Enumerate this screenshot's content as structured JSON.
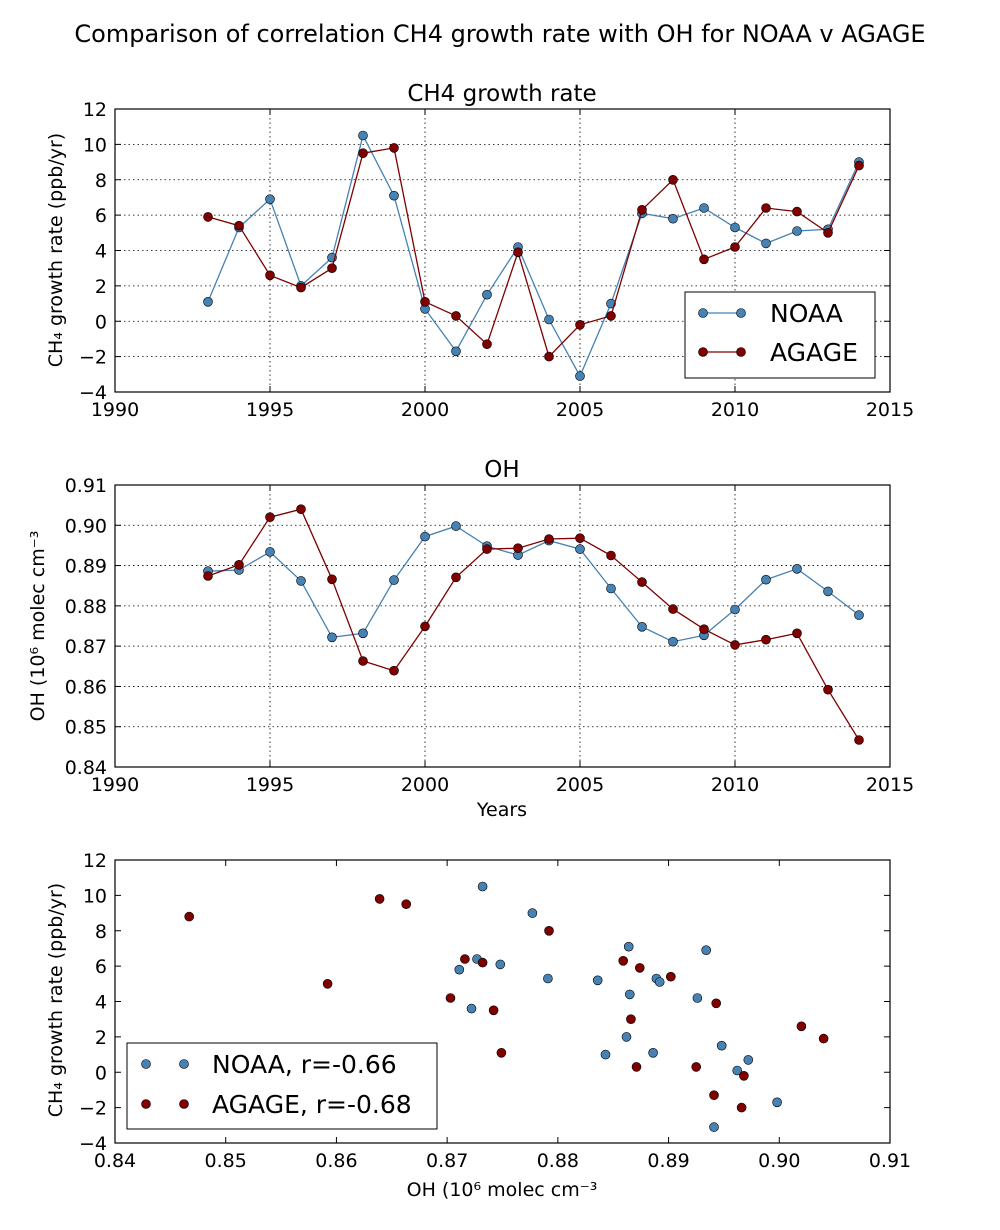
{
  "figure": {
    "title": "Comparison of correlation CH4 growth rate with OH for NOAA v AGAGE"
  },
  "colors": {
    "noaa": "#4682b4",
    "agage": "#800000"
  },
  "panels": [
    {
      "title": "CH4 growth rate",
      "xlabel": "",
      "ylabel": "CH₄ growth rate (ppb/yr)",
      "xticks": [
        "1990",
        "1995",
        "2000",
        "2005",
        "2010",
        "2015"
      ],
      "yticks": [
        "−4",
        "−2",
        "0",
        "2",
        "4",
        "6",
        "8",
        "10",
        "12"
      ],
      "legend": [
        "NOAA",
        "AGAGE"
      ]
    },
    {
      "title": "OH",
      "xlabel": "Years",
      "ylabel": "OH (10⁶ molec cm⁻³",
      "xticks": [
        "1990",
        "1995",
        "2000",
        "2005",
        "2010",
        "2015"
      ],
      "yticks": [
        "0.84",
        "0.85",
        "0.86",
        "0.87",
        "0.88",
        "0.89",
        "0.90",
        "0.91"
      ]
    },
    {
      "title": "",
      "xlabel": "OH (10⁶ molec cm⁻³",
      "ylabel": "CH₄ growth rate (ppb/yr)",
      "xticks": [
        "0.84",
        "0.85",
        "0.86",
        "0.87",
        "0.88",
        "0.89",
        "0.90",
        "0.91"
      ],
      "yticks": [
        "−4",
        "−2",
        "0",
        "2",
        "4",
        "6",
        "8",
        "10",
        "12"
      ],
      "legend": [
        "NOAA, r=-0.66",
        "AGAGE, r=-0.68"
      ]
    }
  ],
  "chart_data": [
    {
      "type": "line",
      "title": "CH4 growth rate",
      "xlabel": "",
      "ylabel": "CH4 growth rate (ppb/yr)",
      "xlim": [
        1990,
        2015
      ],
      "ylim": [
        -4,
        12
      ],
      "grid": true,
      "legend_position": "lower-right",
      "x": [
        1993,
        1994,
        1995,
        1996,
        1997,
        1998,
        1999,
        2000,
        2001,
        2002,
        2003,
        2004,
        2005,
        2006,
        2007,
        2008,
        2009,
        2010,
        2011,
        2012,
        2013,
        2014
      ],
      "series": [
        {
          "name": "NOAA",
          "color": "#4682b4",
          "values": [
            1.1,
            5.3,
            6.9,
            2.0,
            3.6,
            10.5,
            7.1,
            0.7,
            -1.7,
            1.5,
            4.2,
            0.1,
            -3.1,
            1.0,
            6.1,
            5.8,
            6.4,
            5.3,
            4.4,
            5.1,
            5.2,
            9.0
          ]
        },
        {
          "name": "AGAGE",
          "color": "#800000",
          "values": [
            5.9,
            5.4,
            2.6,
            1.9,
            3.0,
            9.5,
            9.8,
            1.1,
            0.3,
            -1.3,
            3.9,
            -2.0,
            -0.2,
            0.3,
            6.3,
            8.0,
            3.5,
            4.2,
            6.4,
            6.2,
            5.0,
            8.8
          ]
        }
      ]
    },
    {
      "type": "line",
      "title": "OH",
      "xlabel": "Years",
      "ylabel": "OH (10^6 molec cm^-3",
      "xlim": [
        1990,
        2015
      ],
      "ylim": [
        0.84,
        0.91
      ],
      "grid": true,
      "x": [
        1993,
        1994,
        1995,
        1996,
        1997,
        1998,
        1999,
        2000,
        2001,
        2002,
        2003,
        2004,
        2005,
        2006,
        2007,
        2008,
        2009,
        2010,
        2011,
        2012,
        2013,
        2014
      ],
      "series": [
        {
          "name": "NOAA",
          "color": "#4682b4",
          "values": [
            0.8886,
            0.8889,
            0.8934,
            0.8862,
            0.8722,
            0.8732,
            0.8864,
            0.8972,
            0.8998,
            0.8948,
            0.8926,
            0.8962,
            0.8941,
            0.8843,
            0.8748,
            0.8711,
            0.8727,
            0.8791,
            0.8865,
            0.8892,
            0.8836,
            0.8777
          ]
        },
        {
          "name": "AGAGE",
          "color": "#800000",
          "values": [
            0.8874,
            0.8902,
            0.902,
            0.904,
            0.8866,
            0.8663,
            0.8639,
            0.8749,
            0.8871,
            0.8941,
            0.8943,
            0.8966,
            0.8968,
            0.8925,
            0.8859,
            0.8792,
            0.8742,
            0.8703,
            0.8716,
            0.8732,
            0.8592,
            0.8467
          ]
        }
      ]
    },
    {
      "type": "scatter",
      "title": "",
      "xlabel": "OH (10^6 molec cm^-3",
      "ylabel": "CH4 growth rate (ppb/yr)",
      "xlim": [
        0.84,
        0.91
      ],
      "ylim": [
        -4,
        12
      ],
      "grid": false,
      "legend_position": "lower-left",
      "series": [
        {
          "name": "NOAA, r=-0.66",
          "color": "#4682b4",
          "x": [
            0.8886,
            0.8889,
            0.8934,
            0.8862,
            0.8722,
            0.8732,
            0.8864,
            0.8972,
            0.8998,
            0.8948,
            0.8926,
            0.8962,
            0.8941,
            0.8843,
            0.8748,
            0.8711,
            0.8727,
            0.8791,
            0.8865,
            0.8892,
            0.8836,
            0.8777
          ],
          "y": [
            1.1,
            5.3,
            6.9,
            2.0,
            3.6,
            10.5,
            7.1,
            0.7,
            -1.7,
            1.5,
            4.2,
            0.1,
            -3.1,
            1.0,
            6.1,
            5.8,
            6.4,
            5.3,
            4.4,
            5.1,
            5.2,
            9.0
          ]
        },
        {
          "name": "AGAGE, r=-0.68",
          "color": "#800000",
          "x": [
            0.8874,
            0.8902,
            0.902,
            0.904,
            0.8866,
            0.8663,
            0.8639,
            0.8749,
            0.8871,
            0.8941,
            0.8943,
            0.8966,
            0.8968,
            0.8925,
            0.8859,
            0.8792,
            0.8742,
            0.8703,
            0.8716,
            0.8732,
            0.8592,
            0.8467
          ],
          "y": [
            5.9,
            5.4,
            2.6,
            1.9,
            3.0,
            9.5,
            9.8,
            1.1,
            0.3,
            -1.3,
            3.9,
            -2.0,
            -0.2,
            0.3,
            6.3,
            8.0,
            3.5,
            4.2,
            6.4,
            6.2,
            5.0,
            8.8
          ]
        }
      ]
    }
  ]
}
